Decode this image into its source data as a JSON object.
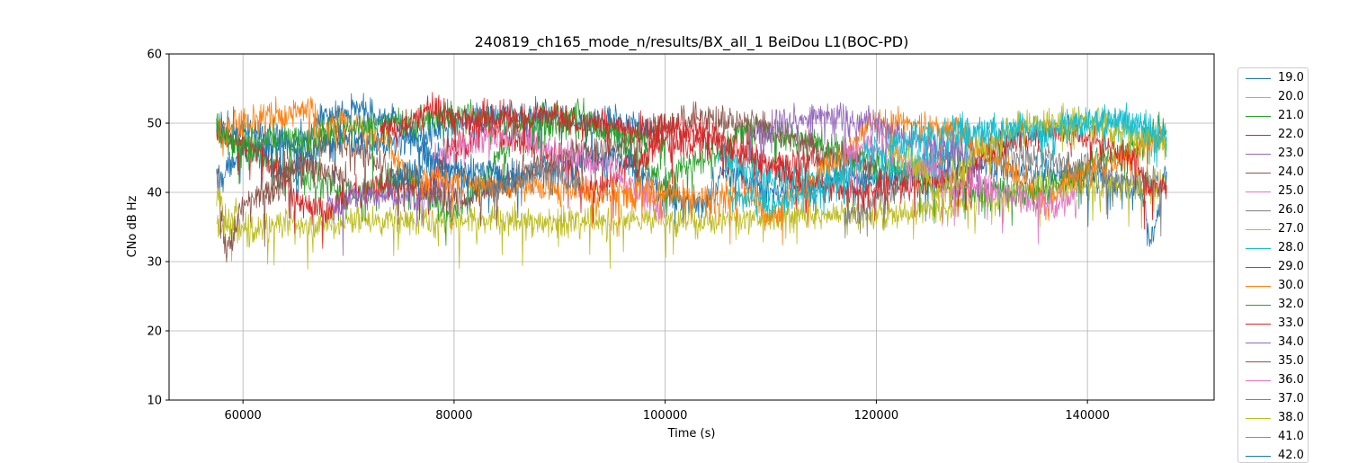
{
  "chart_data": {
    "type": "line",
    "title": "240819_ch165_mode_n/results/BX_all_1 BeiDou L1(BOC-PD)",
    "xlabel": "Time (s)",
    "ylabel": "CNo dB Hz",
    "xlim": [
      53000,
      152000
    ],
    "ylim": [
      10,
      60
    ],
    "xticks": [
      60000,
      80000,
      100000,
      120000,
      140000
    ],
    "xtick_labels": [
      "60000",
      "80000",
      "100000",
      "120000",
      "140000"
    ],
    "yticks": [
      10,
      20,
      30,
      40,
      50,
      60
    ],
    "ytick_labels": [
      "10",
      "20",
      "30",
      "40",
      "50",
      "60"
    ],
    "grid": true,
    "legend_position": "right-outside",
    "series": [
      {
        "name": "19.0",
        "color": "#1f77b4",
        "anchors": [
          [
            57500,
            42
          ],
          [
            60000,
            46
          ],
          [
            63000,
            47
          ],
          [
            66000,
            48
          ],
          [
            68000,
            51
          ],
          [
            70000,
            52
          ],
          [
            73000,
            51
          ],
          [
            76000,
            48
          ],
          [
            78000,
            45
          ],
          [
            80000,
            43
          ],
          [
            83000,
            41
          ],
          [
            85000,
            42
          ],
          [
            90000,
            44
          ],
          [
            95000,
            45
          ],
          [
            100000,
            40
          ],
          [
            103000,
            38
          ],
          [
            106000,
            43
          ],
          [
            110000,
            40
          ],
          [
            115000,
            41
          ],
          [
            118000,
            42
          ],
          [
            120000,
            42
          ],
          [
            125000,
            43
          ],
          [
            130000,
            44
          ],
          [
            135000,
            43
          ],
          [
            140000,
            42
          ],
          [
            145000,
            40
          ],
          [
            146000,
            33
          ],
          [
            147500,
            43
          ]
        ]
      },
      {
        "name": "20.0",
        "color": "#bcbd22",
        "anchors": [
          [
            57500,
            35
          ],
          [
            80000,
            36
          ],
          [
            100000,
            36
          ],
          [
            120000,
            37
          ],
          [
            140000,
            41
          ],
          [
            147500,
            41
          ]
        ]
      },
      {
        "name": "21.0",
        "color": "#2ca02c",
        "anchors": [
          [
            57500,
            49
          ],
          [
            62000,
            45
          ],
          [
            66000,
            42
          ],
          [
            70000,
            40
          ],
          [
            75000,
            42
          ],
          [
            80000,
            37
          ],
          [
            82000,
            40
          ],
          [
            85000,
            47
          ],
          [
            88000,
            51
          ],
          [
            92000,
            51
          ],
          [
            95000,
            49
          ],
          [
            97000,
            45
          ],
          [
            100000,
            42
          ],
          [
            102000,
            44
          ],
          [
            104000,
            45
          ],
          [
            108000,
            49
          ],
          [
            111000,
            49
          ],
          [
            114000,
            47
          ],
          [
            116000,
            46
          ],
          [
            120000,
            44
          ],
          [
            125000,
            42
          ],
          [
            130000,
            40
          ],
          [
            135000,
            40
          ],
          [
            138000,
            42
          ],
          [
            142000,
            45
          ],
          [
            147500,
            49
          ]
        ]
      },
      {
        "name": "22.0",
        "color": "#d62728",
        "anchors": [
          [
            57500,
            48
          ],
          [
            60000,
            47
          ],
          [
            63000,
            44
          ],
          [
            66000,
            38
          ],
          [
            68000,
            37
          ],
          [
            70000,
            40
          ],
          [
            74000,
            41
          ],
          [
            77000,
            40
          ],
          [
            80000,
            46
          ],
          [
            83000,
            49
          ],
          [
            87000,
            47
          ],
          [
            90000,
            45
          ],
          [
            93000,
            40
          ],
          [
            97000,
            44
          ],
          [
            100000,
            47
          ],
          [
            104000,
            47
          ],
          [
            107000,
            45
          ],
          [
            110000,
            44
          ],
          [
            112000,
            44
          ],
          [
            115000,
            45
          ]
        ]
      },
      {
        "name": "23.0",
        "color": "#9467bd",
        "anchors": [
          [
            68000,
            38
          ],
          [
            72000,
            40
          ],
          [
            76000,
            39
          ],
          [
            80000,
            41
          ]
        ]
      },
      {
        "name": "24.0",
        "color": "#8c564b",
        "anchors": [
          [
            57500,
            42
          ],
          [
            58500,
            32
          ],
          [
            60000,
            38
          ],
          [
            62000,
            40
          ],
          [
            65000,
            44
          ],
          [
            68000,
            48
          ],
          [
            70000,
            47
          ],
          [
            75000,
            42
          ],
          [
            80000,
            39
          ],
          [
            85000,
            41
          ],
          [
            88000,
            44
          ],
          [
            93000,
            46
          ],
          [
            96000,
            47
          ],
          [
            100000,
            50
          ],
          [
            104000,
            51
          ],
          [
            108000,
            50
          ],
          [
            112000,
            48
          ],
          [
            116000,
            45
          ],
          [
            120000,
            44
          ]
        ]
      },
      {
        "name": "25.0",
        "color": "#e377c2",
        "anchors": [
          [
            78000,
            45
          ],
          [
            82000,
            48
          ],
          [
            86000,
            48
          ],
          [
            90000,
            46
          ],
          [
            94000,
            44
          ],
          [
            98000,
            40
          ],
          [
            100000,
            37
          ]
        ]
      },
      {
        "name": "26.0",
        "color": "#7f7f7f",
        "anchors": [
          [
            117000,
            36
          ],
          [
            121000,
            40
          ],
          [
            125000,
            44
          ],
          [
            128000,
            46
          ],
          [
            131000,
            46
          ],
          [
            135000,
            45
          ],
          [
            139000,
            44
          ],
          [
            144000,
            42
          ],
          [
            147500,
            41
          ]
        ]
      },
      {
        "name": "27.0",
        "color": "#bcbd22",
        "anchors": [
          [
            57500,
            40
          ],
          [
            58500,
            35
          ],
          [
            59500,
            38
          ]
        ]
      },
      {
        "name": "28.0",
        "color": "#17becf",
        "anchors": [
          [
            105000,
            45
          ],
          [
            110000,
            42
          ],
          [
            115000,
            42
          ],
          [
            118000,
            40
          ],
          [
            121000,
            43
          ],
          [
            125000,
            45
          ],
          [
            130000,
            49
          ],
          [
            135000,
            49
          ],
          [
            140000,
            50
          ],
          [
            143000,
            51
          ],
          [
            146000,
            49
          ],
          [
            147500,
            47
          ]
        ]
      },
      {
        "name": "29.0",
        "color": "#1f77b4",
        "anchors": [
          [
            57500,
            50
          ],
          [
            60000,
            49
          ],
          [
            63000,
            48
          ],
          [
            66000,
            46
          ],
          [
            69000,
            48
          ],
          [
            72000,
            47
          ],
          [
            76000,
            48
          ],
          [
            80000,
            50
          ],
          [
            84000,
            51
          ],
          [
            88000,
            51
          ],
          [
            92000,
            50
          ],
          [
            96000,
            50
          ],
          [
            99000,
            49
          ]
        ]
      },
      {
        "name": "30.0",
        "color": "#ff7f0e",
        "anchors": [
          [
            57500,
            49
          ],
          [
            60000,
            50
          ],
          [
            63000,
            51
          ],
          [
            66000,
            52
          ],
          [
            68000,
            49
          ],
          [
            70000,
            50
          ],
          [
            73000,
            48
          ],
          [
            75000,
            44
          ],
          [
            78000,
            42
          ],
          [
            84000,
            41
          ],
          [
            95000,
            40
          ],
          [
            100000,
            40
          ],
          [
            105000,
            39
          ],
          [
            108000,
            40
          ],
          [
            110000,
            36
          ],
          [
            112000,
            40
          ],
          [
            116000,
            44
          ],
          [
            120000,
            50
          ],
          [
            123000,
            50
          ],
          [
            127000,
            49
          ],
          [
            131000,
            45
          ],
          [
            134000,
            42
          ],
          [
            136000,
            38
          ],
          [
            138000,
            42
          ],
          [
            142000,
            44
          ],
          [
            146000,
            47
          ],
          [
            147500,
            48
          ]
        ]
      },
      {
        "name": "32.0",
        "color": "#2ca02c",
        "anchors": [
          [
            57500,
            49
          ],
          [
            60000,
            47
          ],
          [
            63000,
            48
          ],
          [
            66000,
            47
          ],
          [
            69000,
            49
          ],
          [
            73000,
            50
          ],
          [
            76000,
            50
          ],
          [
            79000,
            51
          ],
          [
            82000,
            51
          ],
          [
            86000,
            50
          ],
          [
            90000,
            50
          ],
          [
            94000,
            49
          ],
          [
            98000,
            48
          ],
          [
            100000,
            48
          ]
        ]
      },
      {
        "name": "33.0",
        "color": "#d62728",
        "anchors": [
          [
            73000,
            49
          ],
          [
            76000,
            50
          ],
          [
            78000,
            52
          ],
          [
            80000,
            51
          ],
          [
            83000,
            51
          ],
          [
            86000,
            51
          ],
          [
            89000,
            51
          ],
          [
            92000,
            50
          ],
          [
            95000,
            50
          ],
          [
            98000,
            49
          ],
          [
            100000,
            49
          ],
          [
            103000,
            49
          ],
          [
            107000,
            47
          ],
          [
            110000,
            44
          ],
          [
            114000,
            41
          ],
          [
            118000,
            40
          ],
          [
            122000,
            41
          ],
          [
            125000,
            41
          ],
          [
            128000,
            42
          ],
          [
            131000,
            46
          ],
          [
            134000,
            48
          ],
          [
            137000,
            49
          ],
          [
            140000,
            48
          ],
          [
            144000,
            45
          ],
          [
            146000,
            41
          ],
          [
            147500,
            41
          ]
        ]
      },
      {
        "name": "34.0",
        "color": "#9467bd",
        "anchors": [
          [
            108000,
            48
          ],
          [
            111000,
            50
          ],
          [
            115000,
            51
          ],
          [
            119000,
            50
          ],
          [
            123000,
            48
          ],
          [
            127000,
            46
          ],
          [
            130000,
            44
          ]
        ]
      },
      {
        "name": "35.0",
        "color": "#8c564b",
        "anchors": [
          [
            62000,
            40
          ],
          [
            66000,
            44
          ],
          [
            70000,
            42
          ]
        ]
      },
      {
        "name": "36.0",
        "color": "#e377c2",
        "anchors": [
          [
            117000,
            46
          ],
          [
            120000,
            47
          ],
          [
            124000,
            44
          ],
          [
            128000,
            41
          ],
          [
            132000,
            40
          ],
          [
            135000,
            39
          ],
          [
            137000,
            38
          ],
          [
            139000,
            39
          ]
        ]
      },
      {
        "name": "37.0",
        "color": "#7f7f7f",
        "anchors": [
          [
            83000,
            41
          ],
          [
            86000,
            42
          ],
          [
            89000,
            43
          ],
          [
            92000,
            41
          ]
        ]
      },
      {
        "name": "38.0",
        "color": "#bcbd22",
        "anchors": [
          [
            121000,
            46
          ],
          [
            124000,
            44
          ],
          [
            126000,
            40
          ],
          [
            128000,
            43
          ],
          [
            130000,
            47
          ],
          [
            135000,
            50
          ],
          [
            139000,
            50
          ],
          [
            143000,
            49
          ],
          [
            147500,
            47
          ]
        ]
      },
      {
        "name": "41.0",
        "color": "#17becf",
        "anchors": [
          [
            106000,
            40
          ],
          [
            110000,
            38
          ],
          [
            114000,
            40
          ],
          [
            117000,
            43
          ],
          [
            120000,
            46
          ],
          [
            124000,
            48
          ],
          [
            128000,
            49
          ],
          [
            132000,
            49
          ],
          [
            136000,
            49
          ],
          [
            140000,
            50
          ],
          [
            144000,
            50
          ],
          [
            147500,
            48
          ]
        ]
      },
      {
        "name": "42.0",
        "color": "#1f77b4",
        "anchors": [
          [
            74000,
            42
          ],
          [
            78000,
            44
          ],
          [
            82000,
            43
          ],
          [
            86000,
            42
          ]
        ]
      }
    ]
  }
}
